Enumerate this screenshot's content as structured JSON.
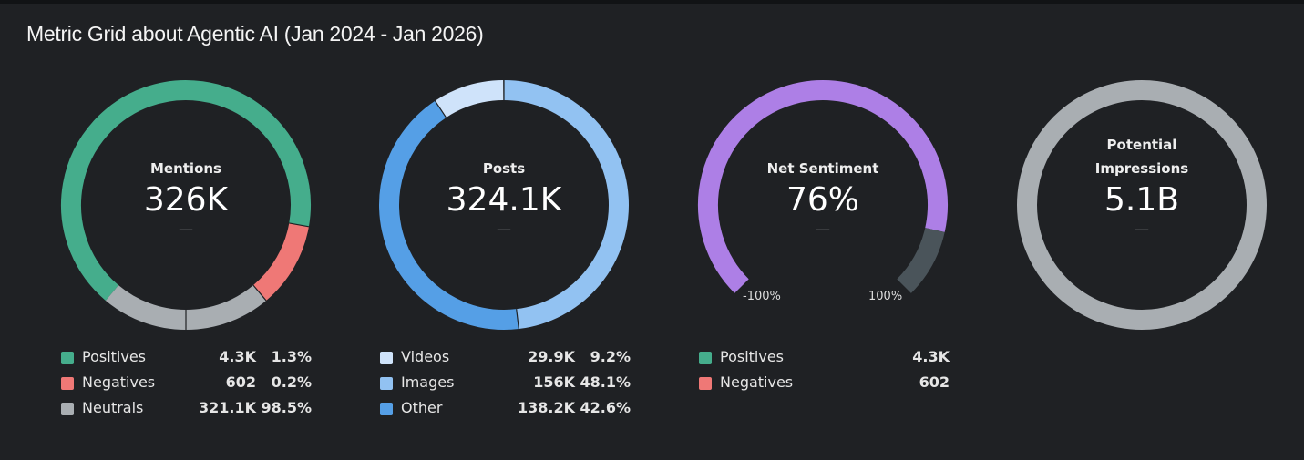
{
  "title": "Metric Grid about Agentic AI (Jan 2024 - Jan 2026)",
  "chart_data": [
    {
      "type": "pie",
      "center_label": "Mentions",
      "center_value": "326K",
      "center_change": "—",
      "series": [
        {
          "name": "Positives",
          "count": "4.3K",
          "percent": "1.3%",
          "value": 1.3,
          "color": "#45ad8c"
        },
        {
          "name": "Negatives",
          "count": "602",
          "percent": "0.2%",
          "value": 0.2,
          "color": "#ef7876"
        },
        {
          "name": "Neutrals",
          "count": "321.1K",
          "percent": "98.5%",
          "value": 98.5,
          "color": "#a9aeb2"
        }
      ]
    },
    {
      "type": "pie",
      "center_label": "Posts",
      "center_value": "324.1K",
      "center_change": "—",
      "series": [
        {
          "name": "Videos",
          "count": "29.9K",
          "percent": "9.2%",
          "value": 9.2,
          "color": "#cfe3fa"
        },
        {
          "name": "Images",
          "count": "156K",
          "percent": "48.1%",
          "value": 48.1,
          "color": "#92c2f2"
        },
        {
          "name": "Other",
          "count": "138.2K",
          "percent": "42.6%",
          "value": 42.6,
          "color": "#559fe6"
        }
      ]
    },
    {
      "type": "gauge",
      "center_label": "Net Sentiment",
      "center_value": "76%",
      "center_change": "—",
      "value": 76,
      "range": [
        -100,
        100
      ],
      "min_label": "-100%",
      "max_label": "100%",
      "fill_color": "#ad7fe6",
      "track_color": "#4a545a",
      "series": [
        {
          "name": "Positives",
          "count": "4.3K",
          "color": "#45ad8c"
        },
        {
          "name": "Negatives",
          "count": "602",
          "color": "#ef7876"
        }
      ]
    },
    {
      "type": "pie",
      "center_label": "Potential Impressions",
      "center_value": "5.1B",
      "center_change": "—",
      "ring_color": "#a9aeb2"
    }
  ]
}
